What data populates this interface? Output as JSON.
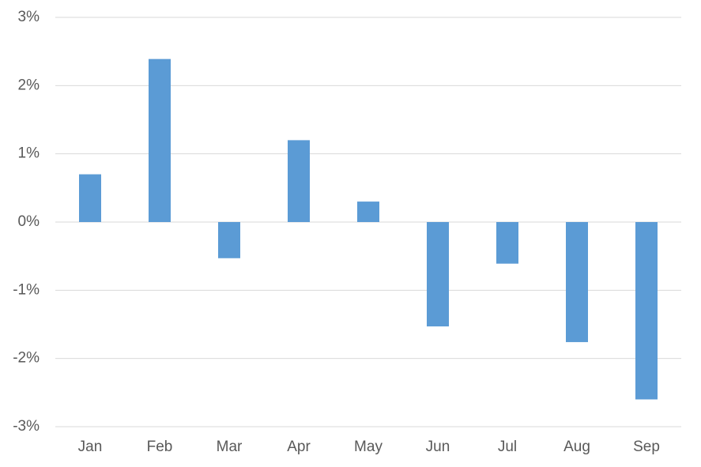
{
  "chart_data": {
    "type": "bar",
    "categories": [
      "Jan",
      "Feb",
      "Mar",
      "Apr",
      "May",
      "Jun",
      "Jul",
      "Aug",
      "Sep"
    ],
    "values": [
      0.7,
      2.39,
      -0.53,
      1.2,
      0.3,
      -1.53,
      -0.61,
      -1.76,
      -2.6
    ],
    "color": "#5b9bd5",
    "ylim": [
      -3,
      3
    ],
    "yticks": [
      {
        "value": -3,
        "label": "-3%"
      },
      {
        "value": -2,
        "label": "-2%"
      },
      {
        "value": -1,
        "label": "-1%"
      },
      {
        "value": 0,
        "label": "0%"
      },
      {
        "value": 1,
        "label": "1%"
      },
      {
        "value": 2,
        "label": "2%"
      },
      {
        "value": 3,
        "label": "3%"
      }
    ],
    "grid": true
  }
}
